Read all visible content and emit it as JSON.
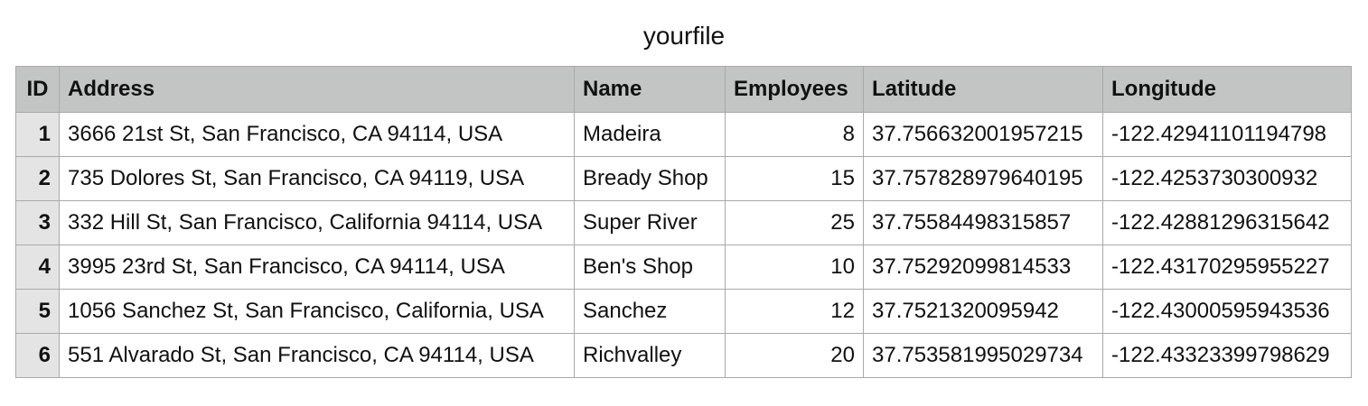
{
  "title": "yourfile",
  "columns": [
    "ID",
    "Address",
    "Name",
    "Employees",
    "Latitude",
    "Longitude"
  ],
  "rows": [
    {
      "id": "1",
      "address": "3666 21st St, San Francisco, CA 94114, USA",
      "name": "Madeira",
      "employees": "8",
      "latitude": "37.756632001957215",
      "longitude": "-122.42941101194798"
    },
    {
      "id": "2",
      "address": "735 Dolores St, San Francisco, CA 94119, USA",
      "name": "Bready Shop",
      "employees": "15",
      "latitude": "37.757828979640195",
      "longitude": "-122.4253730300932"
    },
    {
      "id": "3",
      "address": "332 Hill St, San Francisco, California 94114, USA",
      "name": "Super River",
      "employees": "25",
      "latitude": "37.75584498315857",
      "longitude": "-122.42881296315642"
    },
    {
      "id": "4",
      "address": "3995 23rd St, San Francisco, CA 94114, USA",
      "name": "Ben's Shop",
      "employees": "10",
      "latitude": "37.75292099814533",
      "longitude": "-122.43170295955227"
    },
    {
      "id": "5",
      "address": "1056 Sanchez St, San Francisco, California, USA",
      "name": "Sanchez",
      "employees": "12",
      "latitude": "37.7521320095942",
      "longitude": "-122.43000595943536"
    },
    {
      "id": "6",
      "address": "551 Alvarado St, San Francisco, CA 94114, USA",
      "name": "Richvalley",
      "employees": "20",
      "latitude": "37.753581995029734",
      "longitude": "-122.43323399798629"
    }
  ]
}
